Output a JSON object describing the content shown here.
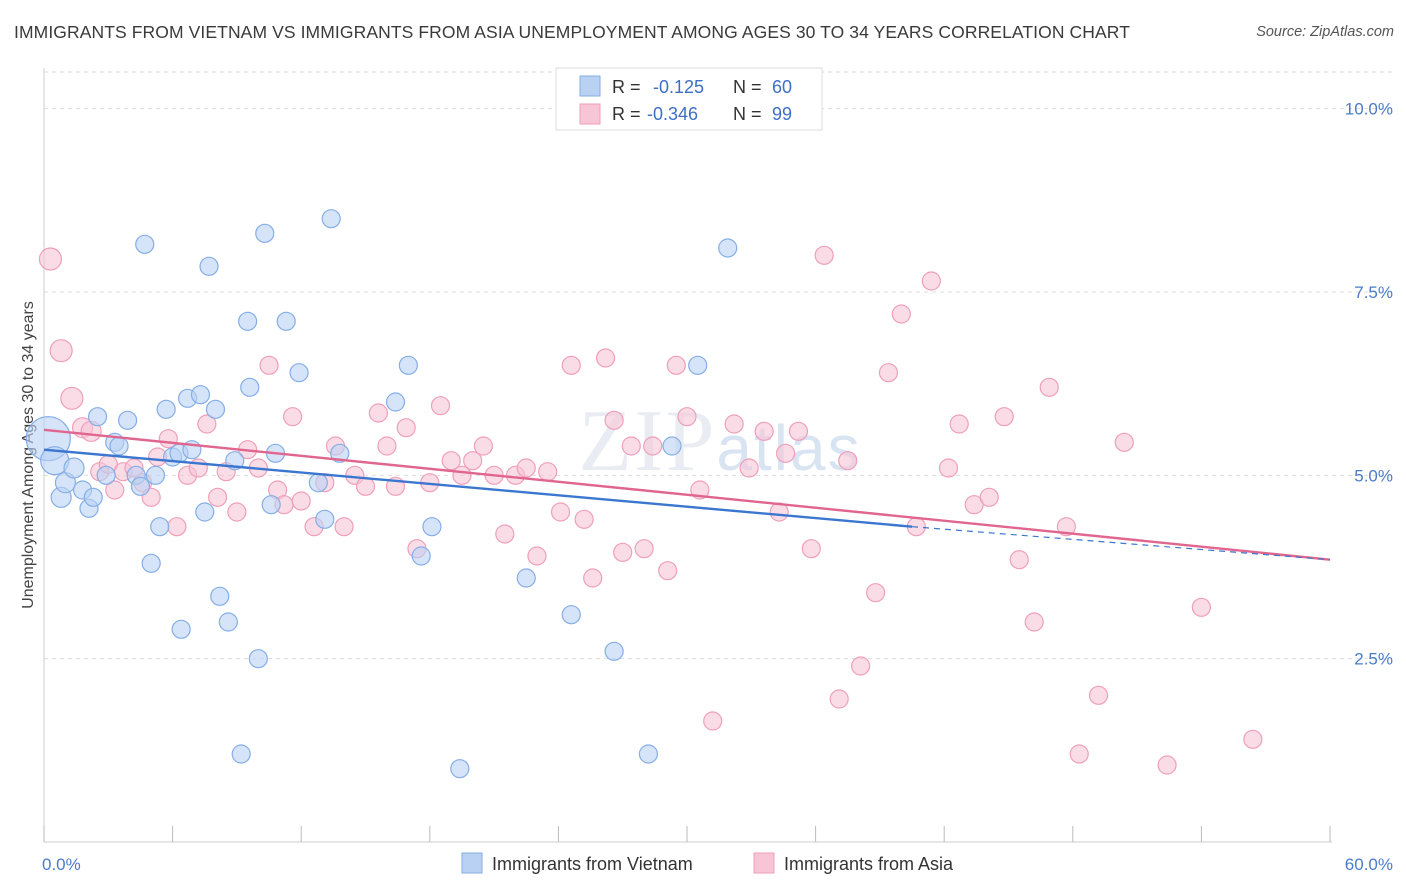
{
  "title": "IMMIGRANTS FROM VIETNAM VS IMMIGRANTS FROM ASIA UNEMPLOYMENT AMONG AGES 30 TO 34 YEARS CORRELATION CHART",
  "source": "Source: ZipAtlas.com",
  "watermark": "ZIPatlas",
  "colors": {
    "vietnam_fill": "#b9d2f3",
    "vietnam_stroke": "#86aee6",
    "vietnam_line": "#3b76cf",
    "asia_fill": "#f7c5d5",
    "asia_stroke": "#ef9fba",
    "asia_line": "#e0668f",
    "grid": "#dddddd",
    "tick_text": "#4a7cc9"
  },
  "legend": {
    "r_label": "R =",
    "n_label": "N =",
    "rows": [
      {
        "series": "vietnam",
        "r": "-0.125",
        "n": "60"
      },
      {
        "series": "asia",
        "r": "-0.346",
        "n": "99"
      }
    ]
  },
  "chart_data": {
    "type": "scatter",
    "xlabel": "",
    "ylabel": "Unemployment Among Ages 30 to 34 years",
    "xlim": [
      0,
      60
    ],
    "ylim": [
      0,
      10.5
    ],
    "x_tick_labels": [
      "0.0%",
      "60.0%"
    ],
    "y_ticks": [
      2.5,
      5.0,
      7.5,
      10.0
    ],
    "y_tick_labels": [
      "2.5%",
      "5.0%",
      "7.5%",
      "10.0%"
    ],
    "grid": true,
    "legend_position": "top-center",
    "series": [
      {
        "name": "Immigrants from Vietnam",
        "trend": {
          "x": [
            0,
            40.5
          ],
          "y": [
            5.35,
            4.3
          ],
          "dashed_to": [
            60,
            3.85
          ]
        },
        "points": [
          [
            0.2,
            5.5,
            22
          ],
          [
            0.5,
            5.2,
            14
          ],
          [
            0.8,
            4.7,
            10
          ],
          [
            1.0,
            4.9,
            10
          ],
          [
            1.4,
            5.1,
            10
          ],
          [
            1.8,
            4.8,
            9
          ],
          [
            2.1,
            4.55,
            9
          ],
          [
            2.3,
            4.7,
            9
          ],
          [
            2.5,
            5.8,
            9
          ],
          [
            2.9,
            5.0,
            9
          ],
          [
            3.3,
            5.45,
            9
          ],
          [
            3.5,
            5.4,
            9
          ],
          [
            3.9,
            5.75,
            9
          ],
          [
            4.3,
            5.0,
            9
          ],
          [
            4.5,
            4.85,
            9
          ],
          [
            4.7,
            8.15,
            9
          ],
          [
            5.0,
            3.8,
            9
          ],
          [
            5.2,
            5.0,
            9
          ],
          [
            5.4,
            4.3,
            9
          ],
          [
            5.7,
            5.9,
            9
          ],
          [
            6.0,
            5.25,
            9
          ],
          [
            6.3,
            5.3,
            9
          ],
          [
            6.4,
            2.9,
            9
          ],
          [
            6.7,
            6.05,
            9
          ],
          [
            6.9,
            5.35,
            9
          ],
          [
            7.3,
            6.1,
            9
          ],
          [
            7.5,
            4.5,
            9
          ],
          [
            7.7,
            7.85,
            9
          ],
          [
            8.0,
            5.9,
            9
          ],
          [
            8.2,
            3.35,
            9
          ],
          [
            8.6,
            3.0,
            9
          ],
          [
            8.9,
            5.2,
            9
          ],
          [
            9.2,
            1.2,
            9
          ],
          [
            9.5,
            7.1,
            9
          ],
          [
            9.6,
            6.2,
            9
          ],
          [
            10.0,
            2.5,
            9
          ],
          [
            10.3,
            8.3,
            9
          ],
          [
            10.6,
            4.6,
            9
          ],
          [
            10.8,
            5.3,
            9
          ],
          [
            11.3,
            7.1,
            9
          ],
          [
            11.9,
            6.4,
            9
          ],
          [
            12.8,
            4.9,
            9
          ],
          [
            13.1,
            4.4,
            9
          ],
          [
            13.4,
            8.5,
            9
          ],
          [
            13.8,
            5.3,
            9
          ],
          [
            16.4,
            6.0,
            9
          ],
          [
            17.0,
            6.5,
            9
          ],
          [
            17.6,
            3.9,
            9
          ],
          [
            18.1,
            4.3,
            9
          ],
          [
            19.4,
            1.0,
            9
          ],
          [
            22.5,
            3.6,
            9
          ],
          [
            24.6,
            3.1,
            9
          ],
          [
            26.6,
            2.6,
            9
          ],
          [
            28.2,
            1.2,
            9
          ],
          [
            29.3,
            5.4,
            9
          ],
          [
            30.5,
            6.5,
            9
          ],
          [
            31.9,
            8.1,
            9
          ]
        ]
      },
      {
        "name": "Immigrants from Asia",
        "trend": {
          "x": [
            0,
            60
          ],
          "y": [
            5.62,
            3.85
          ]
        },
        "points": [
          [
            0.3,
            7.95,
            11
          ],
          [
            0.8,
            6.7,
            11
          ],
          [
            1.3,
            6.05,
            11
          ],
          [
            1.8,
            5.65,
            10
          ],
          [
            2.2,
            5.6,
            10
          ],
          [
            2.6,
            5.05,
            9
          ],
          [
            3.0,
            5.15,
            9
          ],
          [
            3.3,
            4.8,
            9
          ],
          [
            3.7,
            5.05,
            9
          ],
          [
            4.2,
            5.1,
            9
          ],
          [
            4.6,
            4.9,
            9
          ],
          [
            5.0,
            4.7,
            9
          ],
          [
            5.3,
            5.25,
            9
          ],
          [
            5.8,
            5.5,
            9
          ],
          [
            6.2,
            4.3,
            9
          ],
          [
            6.7,
            5.0,
            9
          ],
          [
            7.2,
            5.1,
            9
          ],
          [
            7.6,
            5.7,
            9
          ],
          [
            8.1,
            4.7,
            9
          ],
          [
            8.5,
            5.05,
            9
          ],
          [
            9.0,
            4.5,
            9
          ],
          [
            9.5,
            5.35,
            9
          ],
          [
            10.0,
            5.1,
            9
          ],
          [
            10.5,
            6.5,
            9
          ],
          [
            10.9,
            4.8,
            9
          ],
          [
            11.2,
            4.6,
            9
          ],
          [
            11.6,
            5.8,
            9
          ],
          [
            12.0,
            4.65,
            9
          ],
          [
            12.6,
            4.3,
            9
          ],
          [
            13.1,
            4.9,
            9
          ],
          [
            13.6,
            5.4,
            9
          ],
          [
            14.0,
            4.3,
            9
          ],
          [
            14.5,
            5.0,
            9
          ],
          [
            15.0,
            4.85,
            9
          ],
          [
            15.6,
            5.85,
            9
          ],
          [
            16.0,
            5.4,
            9
          ],
          [
            16.4,
            4.85,
            9
          ],
          [
            16.9,
            5.65,
            9
          ],
          [
            17.4,
            4.0,
            9
          ],
          [
            18.0,
            4.9,
            9
          ],
          [
            18.5,
            5.95,
            9
          ],
          [
            19.0,
            5.2,
            9
          ],
          [
            19.5,
            5.0,
            9
          ],
          [
            20.0,
            5.2,
            9
          ],
          [
            20.5,
            5.4,
            9
          ],
          [
            21.0,
            5.0,
            9
          ],
          [
            21.5,
            4.2,
            9
          ],
          [
            22.0,
            5.0,
            9
          ],
          [
            22.5,
            5.1,
            9
          ],
          [
            23.0,
            3.9,
            9
          ],
          [
            23.5,
            5.05,
            9
          ],
          [
            24.1,
            4.5,
            9
          ],
          [
            24.6,
            6.5,
            9
          ],
          [
            25.2,
            4.4,
            9
          ],
          [
            25.6,
            3.6,
            9
          ],
          [
            26.2,
            6.6,
            9
          ],
          [
            26.6,
            5.75,
            9
          ],
          [
            27.0,
            3.95,
            9
          ],
          [
            27.4,
            5.4,
            9
          ],
          [
            28.0,
            4.0,
            9
          ],
          [
            28.4,
            5.4,
            9
          ],
          [
            29.1,
            3.7,
            9
          ],
          [
            29.5,
            6.5,
            9
          ],
          [
            30.0,
            5.8,
            9
          ],
          [
            30.6,
            4.8,
            9
          ],
          [
            31.2,
            1.65,
            9
          ],
          [
            32.2,
            5.7,
            9
          ],
          [
            32.9,
            5.1,
            9
          ],
          [
            33.6,
            5.6,
            9
          ],
          [
            34.3,
            4.5,
            9
          ],
          [
            34.6,
            5.3,
            9
          ],
          [
            35.2,
            5.6,
            9
          ],
          [
            35.8,
            4.0,
            9
          ],
          [
            36.4,
            8.0,
            9
          ],
          [
            37.1,
            1.95,
            9
          ],
          [
            37.5,
            5.2,
            9
          ],
          [
            38.1,
            2.4,
            9
          ],
          [
            38.8,
            3.4,
            9
          ],
          [
            39.4,
            6.4,
            9
          ],
          [
            40.0,
            7.2,
            9
          ],
          [
            40.7,
            4.3,
            9
          ],
          [
            41.4,
            7.65,
            9
          ],
          [
            42.2,
            5.1,
            9
          ],
          [
            42.7,
            5.7,
            9
          ],
          [
            43.4,
            4.6,
            9
          ],
          [
            44.1,
            4.7,
            9
          ],
          [
            44.8,
            5.8,
            9
          ],
          [
            45.5,
            3.85,
            9
          ],
          [
            46.2,
            3.0,
            9
          ],
          [
            46.9,
            6.2,
            9
          ],
          [
            47.7,
            4.3,
            9
          ],
          [
            48.3,
            1.2,
            9
          ],
          [
            49.2,
            2.0,
            9
          ],
          [
            50.4,
            5.45,
            9
          ],
          [
            52.4,
            1.05,
            9
          ],
          [
            54.0,
            3.2,
            9
          ],
          [
            56.4,
            1.4,
            9
          ]
        ]
      }
    ]
  },
  "bottom_legend": [
    {
      "series": "vietnam",
      "label": "Immigrants from Vietnam"
    },
    {
      "series": "asia",
      "label": "Immigrants from Asia"
    }
  ]
}
